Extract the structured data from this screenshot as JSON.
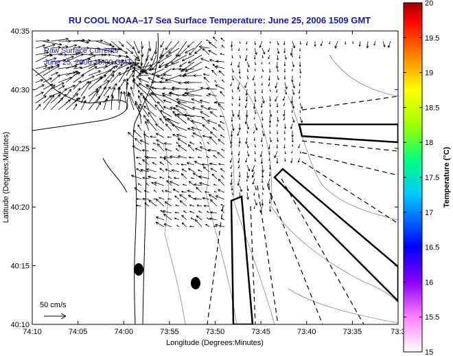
{
  "title": "RU COOL  NOAA–17  Sea Surface Temperature:  June 25, 2006 1509 GMT",
  "legend": {
    "line1": "Raw Surface Currents",
    "line2": "June 25, 2006 15:00 GMT",
    "scale_label": "50 cm/s"
  },
  "chart_data": {
    "type": "map-vector-field",
    "title": "RU COOL  NOAA–17  Sea Surface Temperature:  June 25, 2006 1509 GMT",
    "xlabel": "Longitude (Degrees:Minutes)",
    "ylabel": "Latitude (Degrees:Minutes)",
    "x_tick_labels": [
      "74:10",
      "74:05",
      "74:00",
      "73:55",
      "73:50",
      "73:45",
      "73:40",
      "73:35",
      "73:3"
    ],
    "x_tick_minutes": [
      -10,
      -5,
      0,
      5,
      10,
      15,
      20,
      25,
      30
    ],
    "y_tick_labels": [
      "40:10",
      "40:15",
      "40:20",
      "40:25",
      "40:30",
      "40:35"
    ],
    "y_tick_minutes": [
      10,
      15,
      20,
      25,
      30,
      35
    ],
    "colorbar": {
      "label": "Temperature (°C)",
      "ticks": [
        "15",
        "15.5",
        "16",
        "16.5",
        "17",
        "17.5",
        "18",
        "18.5",
        "19",
        "19.5",
        "20"
      ],
      "range": [
        15,
        20
      ]
    },
    "colors": {
      "title": "#1a1aa0",
      "legend_text": "#1a1aa0",
      "vectors": "#000000",
      "coast": "#000000",
      "bathymetry": "#808080"
    }
  }
}
